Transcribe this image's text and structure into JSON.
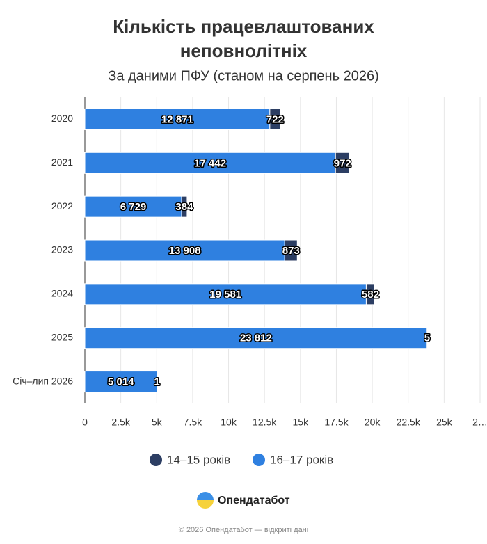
{
  "chart_data": {
    "type": "stacked_bar_horizontal",
    "title": [
      "Кількість працевлаштованих",
      "неповнолітніх"
    ],
    "subtitle": "За даними ПФУ (станом на серпень 2026)",
    "categories": [
      "2020",
      "2021",
      "2022",
      "2023",
      "2024",
      "2025",
      "Січ–лип 2026"
    ],
    "series": [
      {
        "name": "16–17 років",
        "color": "#2f80e0",
        "values": [
          12871,
          17442,
          6729,
          13908,
          19581,
          23812,
          5014
        ],
        "value_labels": [
          "12 871",
          "17 442",
          "6 729",
          "13 908",
          "19 581",
          "23 812",
          "5 014"
        ]
      },
      {
        "name": "14–15 років",
        "color": "#2c3e63",
        "values": [
          722,
          972,
          384,
          873,
          582,
          5,
          1
        ]
      }
    ],
    "xlim": [
      0,
      27500
    ],
    "xticks": [
      0,
      {
        "value": 2500,
        "label": "2.5k"
      },
      {
        "value": 5000,
        "label": "5k"
      },
      {
        "value": 7500,
        "label": "7.5k"
      },
      {
        "value": 10000,
        "label": "10k"
      },
      {
        "value": 12500,
        "label": "12.5k"
      },
      {
        "value": 15000,
        "label": "15k"
      },
      {
        "value": 17500,
        "label": "17.5k"
      },
      {
        "value": 20000,
        "label": "20k"
      },
      {
        "value": 22500,
        "label": "22.5k"
      },
      {
        "value": 25000,
        "label": "25k"
      },
      {
        "value": 27500,
        "label": "2…"
      }
    ],
    "grid": true,
    "legend": "bottom"
  },
  "brand": "Опендатабот",
  "footer": "© 2026 Опендатабот — відкриті дані"
}
